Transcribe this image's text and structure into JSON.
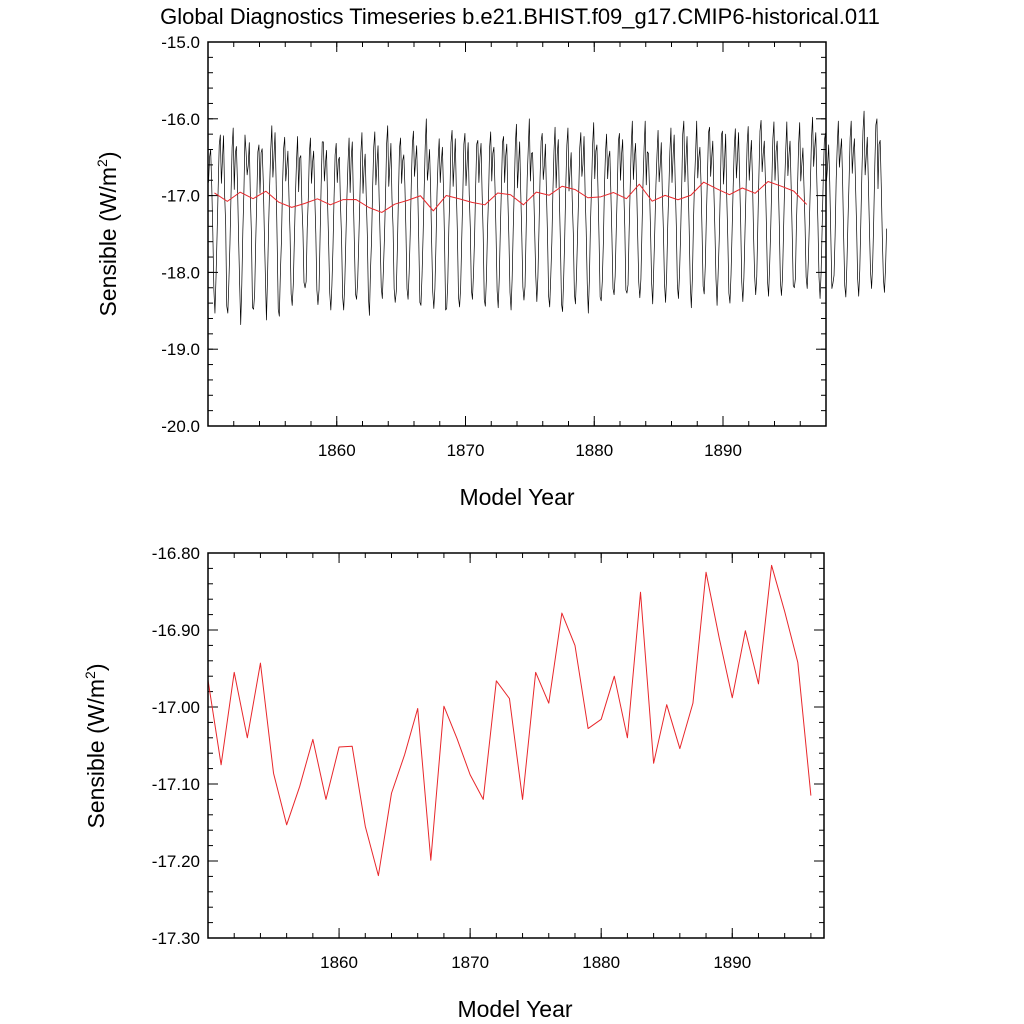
{
  "chart_data": [
    {
      "type": "line",
      "title": "Global Diagnostics Timeseries b.e21.BHIST.f09_g17.CMIP6-historical.011",
      "xlabel": "Model Year",
      "ylabel": "Sensible (W/m",
      "ylabel_sup": "2",
      "ylabel_close": ")",
      "xlim": [
        1850,
        1898
      ],
      "ylim": [
        -20.0,
        -15.0
      ],
      "xticks": [
        "1860",
        "1870",
        "1880",
        "1890"
      ],
      "yticks": [
        "-15.0",
        "-16.0",
        "-17.0",
        "-18.0",
        "-19.0",
        "-20.0"
      ],
      "series": [
        {
          "kind": "monthly",
          "color": "#000000",
          "x_start": 1850.04,
          "x_step": 0.0833333,
          "values": [
            -16.83,
            -16.5,
            -16.4,
            -16.87,
            -17.47,
            -18.23,
            -18.53,
            -18.06,
            -17.5,
            -16.9,
            -16.34,
            -16.21,
            -16.84,
            -16.53,
            -16.22,
            -16.98,
            -17.38,
            -18.44,
            -18.53,
            -18.11,
            -17.62,
            -16.97,
            -16.37,
            -16.12,
            -16.92,
            -16.45,
            -16.36,
            -16.84,
            -17.53,
            -18.14,
            -18.68,
            -18.17,
            -17.46,
            -16.94,
            -16.21,
            -16.43,
            -16.73,
            -16.61,
            -16.31,
            -17.01,
            -17.51,
            -18.46,
            -18.48,
            -18.28,
            -17.6,
            -17.03,
            -16.43,
            -16.34,
            -16.97,
            -16.44,
            -16.39,
            -16.8,
            -17.46,
            -18.05,
            -18.62,
            -18.07,
            -17.41,
            -16.87,
            -16.4,
            -16.09,
            -16.76,
            -16.5,
            -16.18,
            -16.81,
            -17.62,
            -18.48,
            -18.57,
            -18.0,
            -17.58,
            -16.86,
            -16.39,
            -16.24,
            -16.81,
            -16.63,
            -16.42,
            -17.02,
            -17.5,
            -18.28,
            -18.43,
            -18.16,
            -17.58,
            -17.01,
            -16.56,
            -16.23,
            -16.95,
            -16.51,
            -16.48,
            -17.1,
            -17.46,
            -18.13,
            -18.2,
            -18.12,
            -17.43,
            -17.04,
            -16.44,
            -16.25,
            -16.84,
            -16.56,
            -16.42,
            -16.99,
            -17.49,
            -18.23,
            -18.42,
            -18.23,
            -17.53,
            -16.85,
            -16.3,
            -16.3,
            -16.81,
            -16.58,
            -16.41,
            -17.11,
            -17.64,
            -18.27,
            -18.49,
            -18.17,
            -17.68,
            -17.03,
            -16.47,
            -16.32,
            -16.83,
            -16.54,
            -16.5,
            -17.12,
            -17.55,
            -18.32,
            -18.49,
            -18.14,
            -17.57,
            -17.02,
            -16.58,
            -16.25,
            -16.96,
            -16.51,
            -16.3,
            -17.03,
            -17.66,
            -18.28,
            -18.35,
            -18.13,
            -17.62,
            -17.08,
            -16.44,
            -16.18,
            -16.97,
            -16.64,
            -16.46,
            -17.01,
            -17.51,
            -18.31,
            -18.56,
            -17.96,
            -17.56,
            -16.88,
            -16.37,
            -16.17,
            -16.86,
            -16.6,
            -16.35,
            -17.02,
            -17.59,
            -18.2,
            -18.34,
            -17.97,
            -17.54,
            -16.98,
            -16.33,
            -16.09,
            -16.88,
            -16.62,
            -16.32,
            -17.04,
            -17.41,
            -18.21,
            -18.39,
            -18.25,
            -17.7,
            -17.02,
            -16.38,
            -16.25,
            -16.84,
            -16.54,
            -16.47,
            -16.85,
            -17.46,
            -18.21,
            -18.35,
            -18.01,
            -17.5,
            -16.84,
            -16.33,
            -16.16,
            -16.75,
            -16.55,
            -16.35,
            -16.92,
            -17.62,
            -18.39,
            -18.43,
            -18.04,
            -17.52,
            -16.92,
            -16.35,
            -16.0,
            -16.8,
            -16.63,
            -16.4,
            -16.91,
            -17.62,
            -18.26,
            -18.47,
            -18.21,
            -17.64,
            -16.95,
            -16.53,
            -16.26,
            -16.83,
            -16.55,
            -16.37,
            -16.92,
            -17.61,
            -18.49,
            -18.47,
            -18.13,
            -17.42,
            -16.96,
            -16.31,
            -16.15,
            -16.88,
            -16.59,
            -16.26,
            -16.95,
            -17.51,
            -18.32,
            -18.45,
            -18.2,
            -17.58,
            -16.99,
            -16.33,
            -16.19,
            -16.87,
            -16.58,
            -16.31,
            -16.99,
            -17.42,
            -18.23,
            -18.35,
            -18.01,
            -17.53,
            -16.87,
            -16.33,
            -16.28,
            -16.83,
            -16.5,
            -16.32,
            -16.97,
            -17.5,
            -18.35,
            -18.44,
            -18.09,
            -17.47,
            -17.0,
            -16.37,
            -16.17,
            -16.81,
            -16.45,
            -16.37,
            -16.88,
            -17.51,
            -18.24,
            -18.46,
            -18.07,
            -17.44,
            -16.89,
            -16.31,
            -16.23,
            -16.83,
            -16.48,
            -16.33,
            -17.04,
            -17.57,
            -18.26,
            -18.49,
            -18.08,
            -17.44,
            -16.91,
            -16.32,
            -16.07,
            -16.9,
            -16.6,
            -16.3,
            -16.95,
            -17.53,
            -18.19,
            -18.36,
            -18.18,
            -17.49,
            -16.78,
            -16.39,
            -16.0,
            -16.81,
            -16.45,
            -16.44,
            -16.89,
            -17.46,
            -18.04,
            -18.38,
            -18.06,
            -17.45,
            -16.77,
            -16.29,
            -16.19,
            -16.79,
            -16.61,
            -16.33,
            -16.98,
            -17.55,
            -18.31,
            -18.45,
            -18.05,
            -17.6,
            -16.94,
            -16.42,
            -16.11,
            -16.9,
            -16.47,
            -16.27,
            -17.04,
            -17.62,
            -18.41,
            -18.51,
            -18.09,
            -17.55,
            -16.87,
            -16.34,
            -16.12,
            -16.94,
            -16.66,
            -16.44,
            -17.05,
            -17.49,
            -18.28,
            -18.41,
            -18.03,
            -17.49,
            -16.99,
            -16.38,
            -16.18,
            -16.75,
            -16.59,
            -16.23,
            -16.96,
            -17.45,
            -18.15,
            -18.53,
            -18.09,
            -17.37,
            -16.88,
            -16.34,
            -16.05,
            -16.78,
            -16.42,
            -16.34,
            -16.91,
            -17.56,
            -18.32,
            -18.37,
            -18.12,
            -17.62,
            -16.9,
            -16.44,
            -16.2,
            -16.78,
            -16.51,
            -16.42,
            -16.96,
            -17.54,
            -18.21,
            -18.29,
            -18.05,
            -17.47,
            -16.93,
            -16.29,
            -16.19,
            -16.8,
            -16.46,
            -16.27,
            -16.92,
            -17.42,
            -18.23,
            -18.27,
            -18.16,
            -17.48,
            -16.91,
            -16.35,
            -16.03,
            -16.79,
            -16.49,
            -16.32,
            -16.86,
            -17.52,
            -18.13,
            -18.33,
            -18.09,
            -17.45,
            -16.82,
            -16.37,
            -16.03,
            -16.86,
            -16.43,
            -16.45,
            -16.91,
            -17.46,
            -18.14,
            -18.41,
            -17.93,
            -17.42,
            -16.86,
            -16.47,
            -16.15,
            -16.82,
            -16.61,
            -16.31,
            -16.99,
            -17.47,
            -18.15,
            -18.39,
            -18.04,
            -17.4,
            -16.93,
            -16.43,
            -16.12,
            -16.83,
            -16.49,
            -16.21,
            -16.84,
            -17.39,
            -18.17,
            -18.34,
            -18.02,
            -17.52,
            -16.9,
            -16.2,
            -16.03,
            -16.82,
            -16.54,
            -16.23,
            -16.85,
            -17.43,
            -18.15,
            -18.46,
            -18.07,
            -17.35,
            -16.8,
            -16.44,
            -16.03,
            -16.77,
            -16.51,
            -16.37,
            -16.82,
            -17.47,
            -18.18,
            -18.28,
            -17.92,
            -17.29,
            -16.76,
            -16.18,
            -16.11,
            -16.75,
            -16.5,
            -16.29,
            -16.93,
            -17.46,
            -18.09,
            -18.43,
            -18.01,
            -17.57,
            -16.94,
            -16.21,
            -16.16,
            -16.85,
            -16.55,
            -16.2,
            -17.01,
            -17.56,
            -18.27,
            -18.4,
            -18.03,
            -17.46,
            -16.89,
            -16.38,
            -16.13,
            -16.77,
            -16.51,
            -16.18,
            -16.77,
            -17.35,
            -18.13,
            -18.38,
            -18.07,
            -17.49,
            -16.91,
            -16.33,
            -16.1,
            -16.8,
            -16.51,
            -16.28,
            -16.79,
            -17.51,
            -18.05,
            -18.29,
            -18.05,
            -17.37,
            -16.73,
            -16.16,
            -16.02,
            -16.69,
            -16.46,
            -16.29,
            -16.78,
            -17.4,
            -18.11,
            -18.31,
            -17.91,
            -17.43,
            -16.84,
            -16.26,
            -16.04,
            -16.8,
            -16.43,
            -16.29,
            -16.78,
            -17.38,
            -18.12,
            -18.3,
            -18.06,
            -17.43,
            -16.84,
            -16.41,
            -16.04,
            -16.74,
            -16.48,
            -16.29,
            -16.86,
            -17.48,
            -18.17,
            -18.2,
            -18.08,
            -17.34,
            -16.88,
            -16.33,
            -16.05,
            -16.81,
            -16.59,
            -16.38,
            -16.88,
            -17.39,
            -18.06,
            -18.21,
            -17.87,
            -17.37,
            -16.83,
            -16.26,
            -15.98,
            -16.62,
            -16.38,
            -16.18,
            -16.82,
            -17.36,
            -18.06,
            -18.34,
            -17.99,
            -17.38,
            -16.75,
            -16.28,
            -16.19,
            -16.81,
            -16.61,
            -16.34,
            -16.82,
            -17.52,
            -18.21,
            -18.14,
            -18.04,
            -17.53,
            -16.8,
            -16.35,
            -16.03,
            -16.63,
            -16.43,
            -16.26,
            -16.81,
            -17.55,
            -18.17,
            -18.32,
            -17.9,
            -17.33,
            -16.82,
            -16.25,
            -16.03,
            -16.71,
            -16.43,
            -16.26,
            -16.83,
            -17.38,
            -18.08,
            -18.31,
            -17.97,
            -17.33,
            -16.69,
            -16.16,
            -15.9,
            -16.73,
            -16.49,
            -16.24,
            -16.83,
            -17.42,
            -17.99,
            -18.21,
            -17.9,
            -17.32,
            -16.61,
            -16.08,
            -16.0,
            -16.91,
            -16.33,
            -16.28,
            -16.85,
            -17.54,
            -18.08,
            -18.26,
            -17.95,
            -17.43
          ]
        },
        {
          "kind": "annual",
          "color": "#e8272b",
          "x_start": 1850.5,
          "x_step": 1,
          "values": [
            -16.965,
            -17.075,
            -16.955,
            -17.04,
            -16.943,
            -17.086,
            -17.153,
            -17.103,
            -17.042,
            -17.12,
            -17.052,
            -17.051,
            -17.155,
            -17.219,
            -17.112,
            -17.062,
            -17.002,
            -17.199,
            -16.999,
            -17.041,
            -17.088,
            -17.12,
            -16.966,
            -16.989,
            -17.12,
            -16.955,
            -16.995,
            -16.878,
            -16.92,
            -17.028,
            -17.016,
            -16.96,
            -17.04,
            -16.851,
            -17.073,
            -16.997,
            -17.054,
            -16.995,
            -16.825,
            -16.91,
            -16.988,
            -16.901,
            -16.97,
            -16.816,
            -16.876,
            -16.942,
            -17.115
          ]
        }
      ]
    },
    {
      "type": "line",
      "title": "",
      "xlabel": "Model Year",
      "ylabel": "Sensible (W/m",
      "ylabel_sup": "2",
      "ylabel_close": ")",
      "xlim": [
        1850,
        1897
      ],
      "ylim": [
        -17.3,
        -16.8
      ],
      "xticks": [
        "1860",
        "1870",
        "1880",
        "1890"
      ],
      "yticks": [
        "-16.80",
        "-16.90",
        "-17.00",
        "-17.10",
        "-17.20",
        "-17.30"
      ],
      "series": [
        {
          "kind": "annual",
          "color": "#e8272b",
          "x_start": 1850,
          "x_step": 1,
          "values": [
            -16.965,
            -17.075,
            -16.955,
            -17.04,
            -16.943,
            -17.086,
            -17.153,
            -17.103,
            -17.042,
            -17.12,
            -17.052,
            -17.051,
            -17.155,
            -17.219,
            -17.112,
            -17.062,
            -17.002,
            -17.199,
            -16.999,
            -17.041,
            -17.088,
            -17.12,
            -16.966,
            -16.989,
            -17.12,
            -16.955,
            -16.995,
            -16.878,
            -16.92,
            -17.028,
            -17.016,
            -16.96,
            -17.04,
            -16.851,
            -17.073,
            -16.997,
            -17.054,
            -16.995,
            -16.825,
            -16.91,
            -16.988,
            -16.901,
            -16.97,
            -16.816,
            -16.876,
            -16.942,
            -17.115
          ]
        }
      ]
    }
  ]
}
